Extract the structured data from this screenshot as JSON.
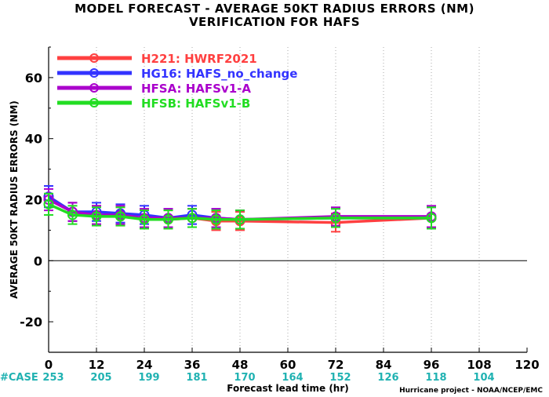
{
  "title": "MODEL FORECAST - AVERAGE 50KT RADIUS ERRORS (NM)",
  "subtitle": "VERIFICATION FOR HAFS",
  "credit": "Hurricane project - NOAA/NCEP/EMC",
  "case_label": "#CASE",
  "colors": {
    "case_text": "#20b2b2",
    "zero_line": "#000000"
  },
  "chart_data": {
    "type": "line",
    "xlabel": "Forecast lead time (hr)",
    "ylabel": "AVERAGE 50KT RADIUS ERRORS (NM)",
    "xlim": [
      0,
      120
    ],
    "ylim": [
      -30,
      70
    ],
    "xticks": [
      0,
      12,
      24,
      36,
      48,
      60,
      72,
      84,
      96,
      108,
      120
    ],
    "yticks": [
      -20,
      0,
      20,
      40,
      60
    ],
    "ytick_labels": [
      "-20",
      "0",
      "20",
      "40",
      "60"
    ],
    "x": [
      0,
      6,
      12,
      18,
      24,
      30,
      36,
      42,
      48,
      72,
      96
    ],
    "cases": [
      {
        "x": 0,
        "n": "253"
      },
      {
        "x": 12,
        "n": "205"
      },
      {
        "x": 24,
        "n": "199"
      },
      {
        "x": 36,
        "n": "181"
      },
      {
        "x": 48,
        "n": "170"
      },
      {
        "x": 60,
        "n": "164"
      },
      {
        "x": 72,
        "n": "152"
      },
      {
        "x": 84,
        "n": "126"
      },
      {
        "x": 96,
        "n": "118"
      },
      {
        "x": 108,
        "n": "104"
      }
    ],
    "legend_position": "top-left",
    "series": [
      {
        "name": "H221: HWRF2021",
        "color": "#ff4040",
        "values": [
          21,
          16,
          15,
          14.5,
          14,
          13.5,
          14,
          13,
          13,
          12.5,
          14
        ],
        "err": [
          3.5,
          3,
          3,
          3,
          3,
          3,
          3,
          3,
          3,
          3,
          3.5
        ]
      },
      {
        "name": "HG16: HAFS_no_change",
        "color": "#3333ff",
        "values": [
          21,
          16,
          16,
          15.5,
          15,
          14,
          15,
          14,
          13.5,
          14,
          14
        ],
        "err": [
          3.5,
          3,
          3,
          3,
          3,
          3,
          3,
          3,
          3,
          3,
          3.5
        ]
      },
      {
        "name": "HFSA: HAFSv1-A",
        "color": "#aa00cc",
        "values": [
          20,
          16,
          15,
          15,
          14,
          14,
          14,
          14,
          13.5,
          14.5,
          14.5
        ],
        "err": [
          3.5,
          3,
          3,
          3,
          3,
          3,
          3,
          3,
          3,
          3,
          3.5
        ]
      },
      {
        "name": "HFSB: HAFSv1-B",
        "color": "#22dd22",
        "values": [
          18.5,
          15,
          14.5,
          14.5,
          13.5,
          13.5,
          14,
          13.5,
          13.5,
          14,
          14
        ],
        "err": [
          3.5,
          3,
          3,
          3,
          3,
          3,
          3,
          3,
          3,
          3,
          3.5
        ]
      }
    ]
  }
}
